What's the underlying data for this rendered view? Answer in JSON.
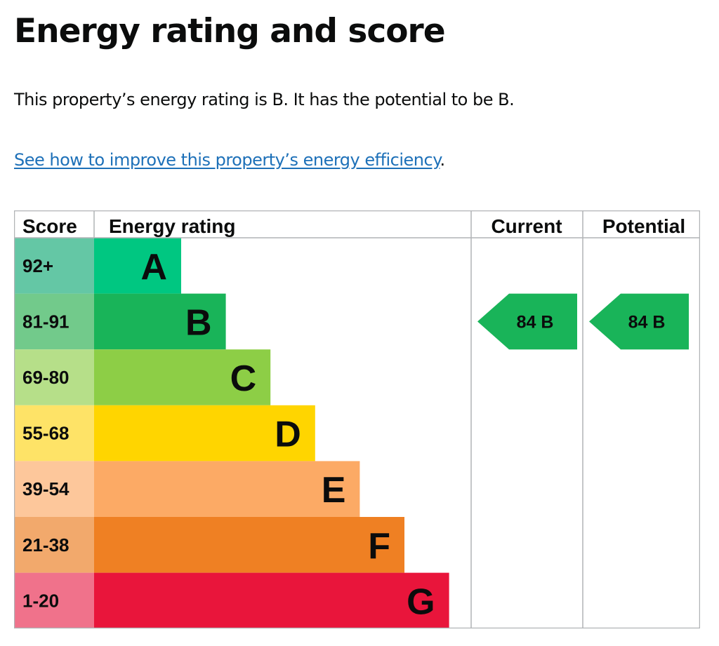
{
  "page": {
    "title": "Energy rating and score",
    "summary": "This property’s energy rating is B. It has the potential to be B.",
    "improve_link": "See how to improve this property’s energy efficiency",
    "improve_link_suffix": "."
  },
  "chart_data": {
    "type": "table",
    "headers": {
      "score": "Score",
      "rating": "Energy rating",
      "current": "Current",
      "potential": "Potential"
    },
    "bands": [
      {
        "letter": "A",
        "score": "92+",
        "color": "#00c781",
        "score_color": "#64c7a5"
      },
      {
        "letter": "B",
        "score": "81-91",
        "color": "#19b459",
        "score_color": "#72ca8b"
      },
      {
        "letter": "C",
        "score": "69-80",
        "color": "#8dce46",
        "score_color": "#b6df89"
      },
      {
        "letter": "D",
        "score": "55-68",
        "color": "#ffd500",
        "score_color": "#fee367"
      },
      {
        "letter": "E",
        "score": "39-54",
        "color": "#fcaa65",
        "score_color": "#fdc79b"
      },
      {
        "letter": "F",
        "score": "21-38",
        "color": "#ef8023",
        "score_color": "#f2a96c"
      },
      {
        "letter": "G",
        "score": "1-20",
        "color": "#e9153b",
        "score_color": "#f0728b"
      }
    ],
    "current": {
      "score": "84",
      "band": "B",
      "label": "84  B",
      "color": "#19b459"
    },
    "potential": {
      "score": "84",
      "band": "B",
      "label": "84  B",
      "color": "#19b459"
    }
  }
}
